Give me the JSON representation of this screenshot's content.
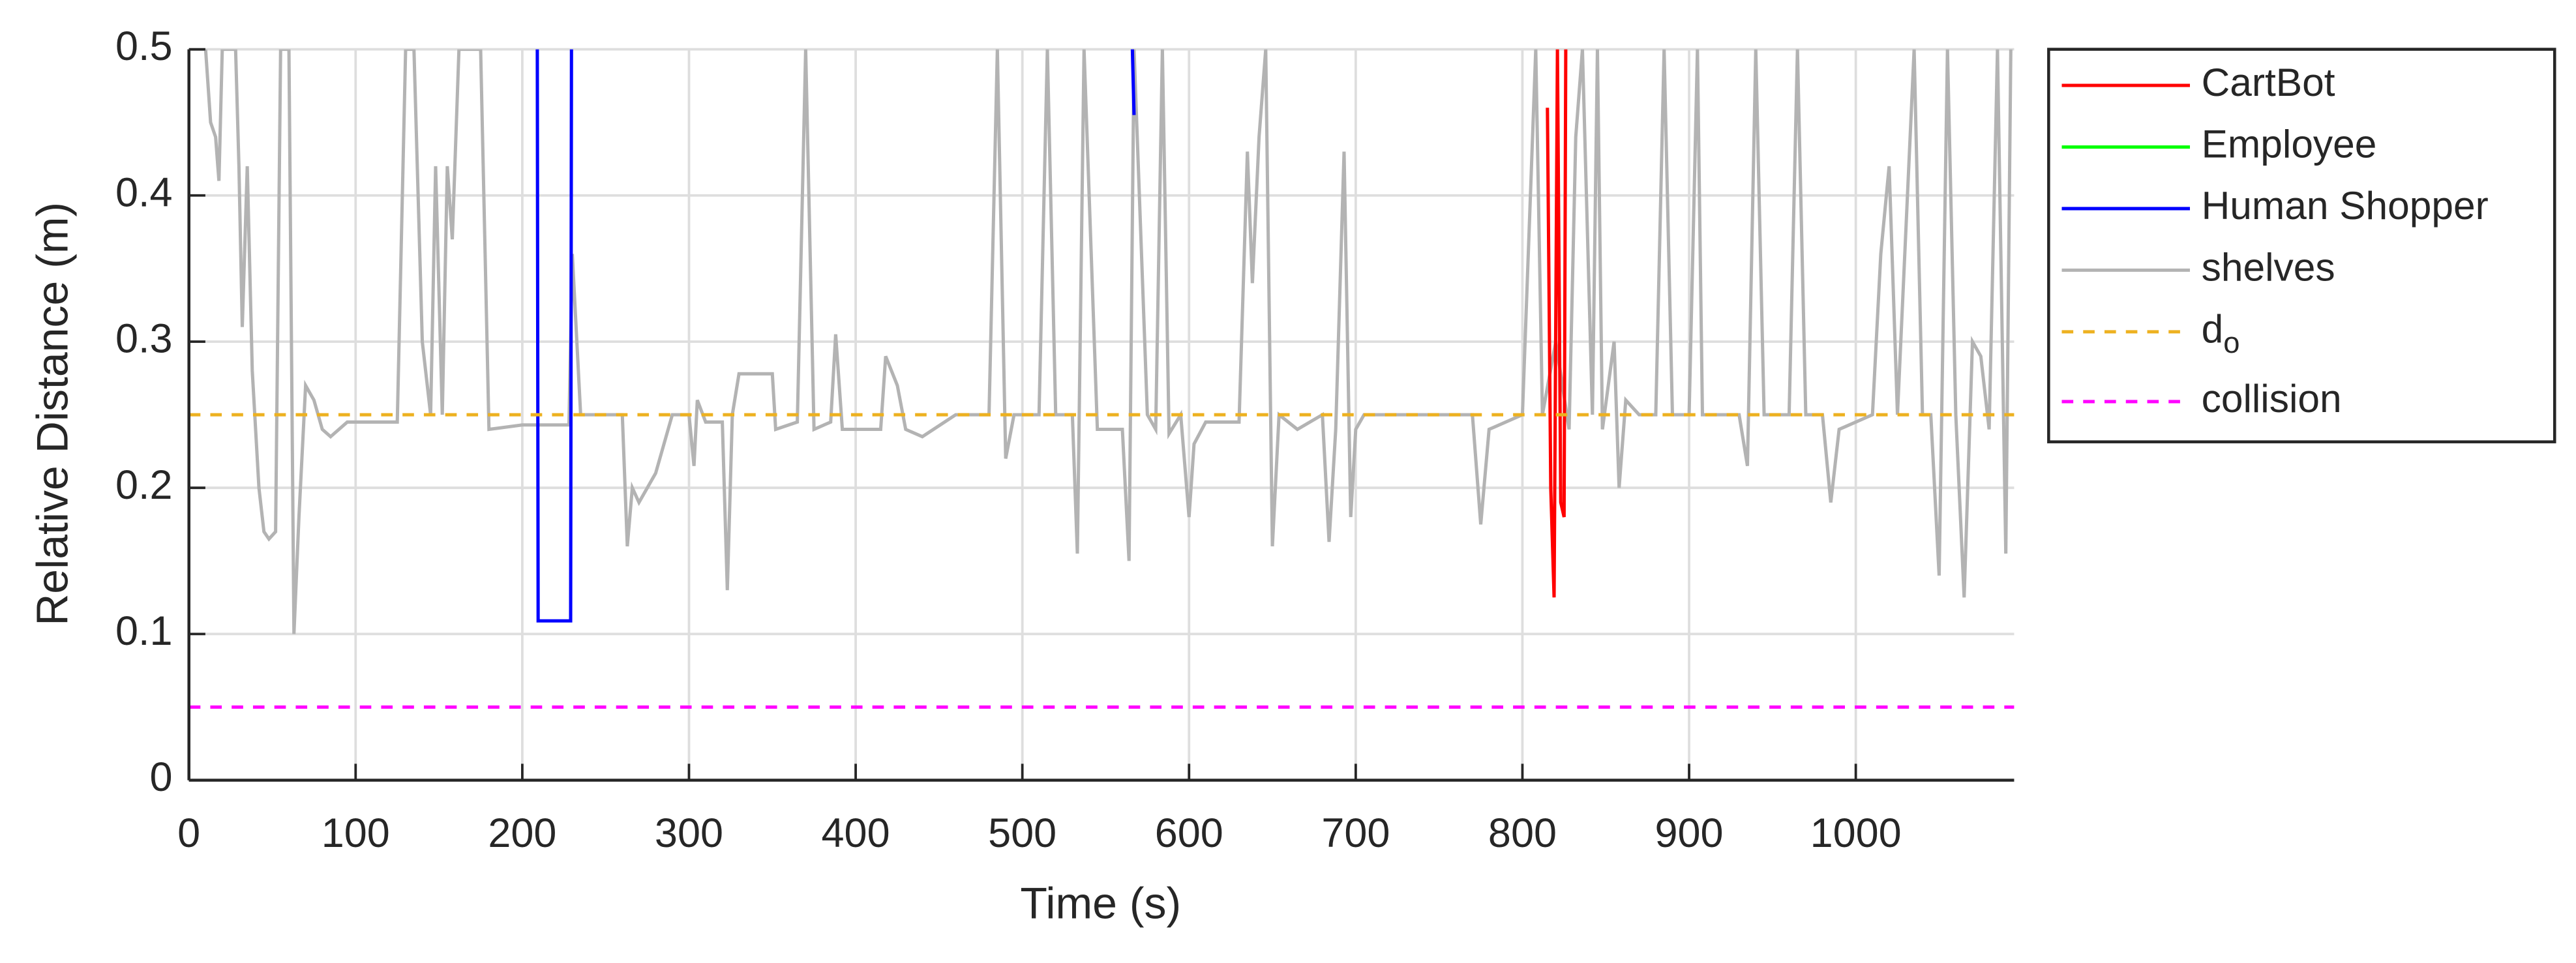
{
  "chart_data": {
    "type": "line",
    "xlabel": "Time (s)",
    "ylabel": "Relative Distance (m)",
    "xlim": [
      0,
      1095
    ],
    "ylim": [
      0,
      0.5
    ],
    "xticks": [
      0,
      100,
      200,
      300,
      400,
      500,
      600,
      700,
      800,
      900,
      1000
    ],
    "yticks": [
      0,
      0.1,
      0.2,
      0.3,
      0.4,
      0.5
    ],
    "grid": true,
    "legend": "east-outside",
    "series": [
      {
        "name": "CartBot",
        "color": "#ff0000",
        "x": [
          815,
          817,
          819,
          821,
          823,
          825,
          826
        ],
        "values": [
          0.46,
          0.2,
          0.125,
          0.5,
          0.19,
          0.18,
          0.5
        ]
      },
      {
        "name": "Employee",
        "color": "#00ff00",
        "x": [],
        "values": []
      },
      {
        "name": "Human Shopper",
        "color": "#0000ff",
        "x": [
          209,
          209.5,
          229,
          229.5,
          565,
          566,
          567
        ],
        "values": [
          0.5,
          0.109,
          0.109,
          0.5,
          null,
          0.5,
          0.455
        ]
      },
      {
        "name": "shelves",
        "color": "#b3b3b3",
        "x": [
          0,
          10,
          13,
          16,
          18,
          20,
          28,
          30,
          32,
          35,
          38,
          42,
          45,
          48,
          52,
          55,
          60,
          63,
          66,
          70,
          75,
          80,
          85,
          95,
          105,
          125,
          130,
          135,
          140,
          145,
          148,
          152,
          155,
          158,
          162,
          175,
          180,
          200,
          228,
          230,
          235,
          260,
          263,
          266,
          270,
          280,
          290,
          300,
          303,
          305,
          310,
          320,
          323,
          326,
          330,
          350,
          352,
          365,
          370,
          375,
          385,
          388,
          392,
          415,
          418,
          425,
          430,
          440,
          460,
          480,
          485,
          490,
          495,
          510,
          515,
          520,
          530,
          533,
          537,
          545,
          560,
          564,
          567,
          575,
          580,
          584,
          588,
          595,
          600,
          603,
          610,
          630,
          635,
          638,
          642,
          646,
          650,
          654,
          665,
          680,
          684,
          688,
          693,
          697,
          700,
          705,
          740,
          770,
          775,
          780,
          790,
          800,
          808,
          812,
          820,
          828,
          832,
          836,
          842,
          845,
          848,
          855,
          858,
          862,
          870,
          880,
          885,
          890,
          900,
          905,
          908,
          930,
          935,
          940,
          945,
          960,
          965,
          970,
          980,
          985,
          990,
          1000,
          1010,
          1015,
          1020,
          1025,
          1035,
          1040,
          1045,
          1050,
          1055,
          1060,
          1065,
          1070,
          1075,
          1080,
          1085,
          1090,
          1093
        ],
        "values": [
          0.5,
          0.5,
          0.45,
          0.44,
          0.41,
          0.5,
          0.5,
          0.42,
          0.31,
          0.42,
          0.28,
          0.2,
          0.17,
          0.165,
          0.17,
          0.5,
          0.5,
          0.1,
          0.18,
          0.27,
          0.26,
          0.24,
          0.235,
          0.245,
          0.245,
          0.245,
          0.5,
          0.5,
          0.3,
          0.25,
          0.42,
          0.25,
          0.42,
          0.37,
          0.5,
          0.5,
          0.24,
          0.243,
          0.243,
          0.36,
          0.25,
          0.25,
          0.16,
          0.2,
          0.19,
          0.21,
          0.25,
          0.25,
          0.215,
          0.26,
          0.245,
          0.245,
          0.13,
          0.25,
          0.278,
          0.278,
          0.24,
          0.245,
          0.5,
          0.24,
          0.245,
          0.305,
          0.24,
          0.24,
          0.29,
          0.27,
          0.24,
          0.235,
          0.25,
          0.25,
          0.5,
          0.22,
          0.25,
          0.25,
          0.5,
          0.25,
          0.25,
          0.155,
          0.5,
          0.24,
          0.24,
          0.15,
          0.5,
          0.25,
          0.24,
          0.5,
          0.237,
          0.25,
          0.18,
          0.23,
          0.245,
          0.245,
          0.43,
          0.34,
          0.44,
          0.5,
          0.16,
          0.25,
          0.24,
          0.25,
          0.163,
          0.24,
          0.43,
          0.18,
          0.24,
          0.25,
          0.25,
          0.25,
          0.175,
          0.24,
          0.245,
          0.25,
          0.5,
          0.25,
          0.3,
          0.24,
          0.44,
          0.5,
          0.25,
          0.5,
          0.24,
          0.3,
          0.2,
          0.26,
          0.25,
          0.25,
          0.5,
          0.25,
          0.25,
          0.5,
          0.25,
          0.25,
          0.215,
          0.5,
          0.25,
          0.25,
          0.5,
          0.25,
          0.25,
          0.19,
          0.24,
          0.245,
          0.25,
          0.36,
          0.42,
          0.25,
          0.5,
          0.25,
          0.25,
          0.14,
          0.5,
          0.25,
          0.125,
          0.3,
          0.29,
          0.24,
          0.5,
          0.155,
          0.5
        ]
      },
      {
        "name": "d_o",
        "color": "#edb120",
        "dashed": true,
        "x": [
          0,
          1095
        ],
        "values": [
          0.25,
          0.25
        ]
      },
      {
        "name": "collision",
        "color": "#ff00ff",
        "dashed": true,
        "x": [
          0,
          1095
        ],
        "values": [
          0.05,
          0.05
        ]
      }
    ]
  }
}
